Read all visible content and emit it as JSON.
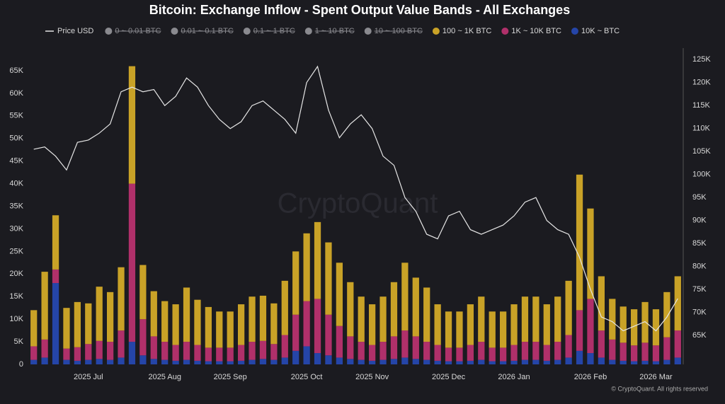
{
  "chart_data": {
    "type": "bar",
    "title": "Bitcoin: Exchange Inflow - Spent Output Value Bands - All Exchanges",
    "watermark": "CryptoQuant",
    "credit": "© CryptoQuant. All rights reserved",
    "stacked": true,
    "grid": false,
    "legend_hidden": [
      "0 ~ 0.01 BTC",
      "0.01 ~ 0.1 BTC",
      "0.1 ~ 1 BTC",
      "1 ~ 10 BTC",
      "10 ~ 100 BTC"
    ],
    "categories": [
      null,
      null,
      null,
      null,
      null,
      "2025 Jul",
      null,
      null,
      null,
      null,
      null,
      null,
      "2025 Aug",
      null,
      null,
      null,
      null,
      null,
      "2025 Sep",
      null,
      null,
      null,
      null,
      null,
      null,
      "2025 Oct",
      null,
      null,
      null,
      null,
      null,
      "2025 Nov",
      null,
      null,
      null,
      null,
      null,
      null,
      "2025 Dec",
      null,
      null,
      null,
      null,
      null,
      "2026 Jan",
      null,
      null,
      null,
      null,
      null,
      null,
      "2026 Feb",
      null,
      null,
      null,
      null,
      null,
      "2026 Mar",
      null,
      null
    ],
    "series": [
      {
        "name": "100 ~ 1K BTC",
        "color": "#c9a227",
        "values": [
          8000,
          15000,
          12000,
          9000,
          10000,
          9000,
          12000,
          11000,
          14000,
          26000,
          12000,
          10000,
          9000,
          9000,
          12000,
          10000,
          9000,
          8000,
          8000,
          9000,
          10000,
          10000,
          9000,
          12000,
          14000,
          15000,
          17000,
          16000,
          14000,
          12000,
          10000,
          9000,
          10000,
          12000,
          15000,
          13000,
          12000,
          9000,
          8000,
          8000,
          9000,
          10000,
          8000,
          8000,
          9000,
          10000,
          10000,
          9000,
          10000,
          12000,
          30000,
          20000,
          12000,
          9000,
          8000,
          8000,
          9000,
          8000,
          10000,
          12000
        ]
      },
      {
        "name": "1K ~ 10K BTC",
        "color": "#b0306a",
        "values": [
          3000,
          4000,
          3000,
          2500,
          3000,
          3500,
          4000,
          4000,
          6000,
          35000,
          8000,
          5000,
          4000,
          3500,
          4000,
          3500,
          3000,
          3000,
          3000,
          3500,
          4000,
          4000,
          3500,
          5000,
          8000,
          10000,
          12000,
          9000,
          7000,
          5000,
          4000,
          3500,
          4000,
          5000,
          6000,
          5000,
          4000,
          3500,
          3000,
          3000,
          3500,
          4000,
          3000,
          3000,
          3500,
          4000,
          4000,
          3500,
          4000,
          5000,
          9000,
          12000,
          6000,
          4500,
          4000,
          3500,
          4000,
          3500,
          5000,
          6000
        ]
      },
      {
        "name": "10K ~ BTC",
        "color": "#2545a8",
        "values": [
          1000,
          1500,
          18000,
          1000,
          800,
          1000,
          1200,
          1000,
          1500,
          5000,
          2000,
          1200,
          1000,
          800,
          1000,
          800,
          700,
          700,
          700,
          800,
          1000,
          1200,
          1000,
          1500,
          3000,
          4000,
          2500,
          2000,
          1500,
          1200,
          1000,
          800,
          1000,
          1200,
          1500,
          1200,
          1000,
          800,
          700,
          700,
          800,
          1000,
          700,
          700,
          800,
          1000,
          1000,
          800,
          1000,
          1500,
          3000,
          2500,
          1500,
          1000,
          800,
          700,
          800,
          700,
          1000,
          1500
        ]
      },
      {
        "name": "Price USD",
        "color": "#e6e6e6",
        "type": "line",
        "axis": "y2",
        "values": [
          105500,
          106000,
          104000,
          101000,
          107000,
          107500,
          109000,
          111000,
          118000,
          119000,
          118000,
          118500,
          115000,
          117000,
          121000,
          119000,
          115000,
          112000,
          110000,
          111500,
          115000,
          116000,
          114000,
          112000,
          109000,
          120000,
          123500,
          114000,
          108000,
          111000,
          113000,
          110000,
          104000,
          102000,
          95000,
          92000,
          87000,
          86000,
          91000,
          92000,
          88000,
          87000,
          88000,
          89000,
          91000,
          94000,
          95000,
          90000,
          88000,
          87000,
          82000,
          75000,
          69000,
          68000,
          66000,
          67000,
          68000,
          66000,
          69000,
          73000
        ]
      }
    ],
    "ylim": [
      0,
      70000
    ],
    "yticks": [
      0,
      {
        "value": 5000,
        "label": "5K"
      },
      {
        "value": 10000,
        "label": "10K"
      },
      {
        "value": 15000,
        "label": "15K"
      },
      {
        "value": 20000,
        "label": "20K"
      },
      {
        "value": 25000,
        "label": "25K"
      },
      {
        "value": 30000,
        "label": "30K"
      },
      {
        "value": 35000,
        "label": "35K"
      },
      {
        "value": 40000,
        "label": "40K"
      },
      {
        "value": 45000,
        "label": "45K"
      },
      {
        "value": 50000,
        "label": "50K"
      },
      {
        "value": 55000,
        "label": "55K"
      },
      {
        "value": 60000,
        "label": "60K"
      },
      {
        "value": 65000,
        "label": "65K"
      }
    ],
    "y2lim": [
      58700,
      127500
    ],
    "y2ticks": [
      {
        "value": 65000,
        "label": "65K"
      },
      {
        "value": 70000,
        "label": "70K"
      },
      {
        "value": 75000,
        "label": "75K"
      },
      {
        "value": 80000,
        "label": "80K"
      },
      {
        "value": 85000,
        "label": "85K"
      },
      {
        "value": 90000,
        "label": "90K"
      },
      {
        "value": 95000,
        "label": "95K"
      },
      {
        "value": 100000,
        "label": "100K"
      },
      {
        "value": 105000,
        "label": "105K"
      },
      {
        "value": 110000,
        "label": "110K"
      },
      {
        "value": 115000,
        "label": "115K"
      },
      {
        "value": 120000,
        "label": "120K"
      },
      {
        "value": 125000,
        "label": "125K"
      }
    ]
  }
}
